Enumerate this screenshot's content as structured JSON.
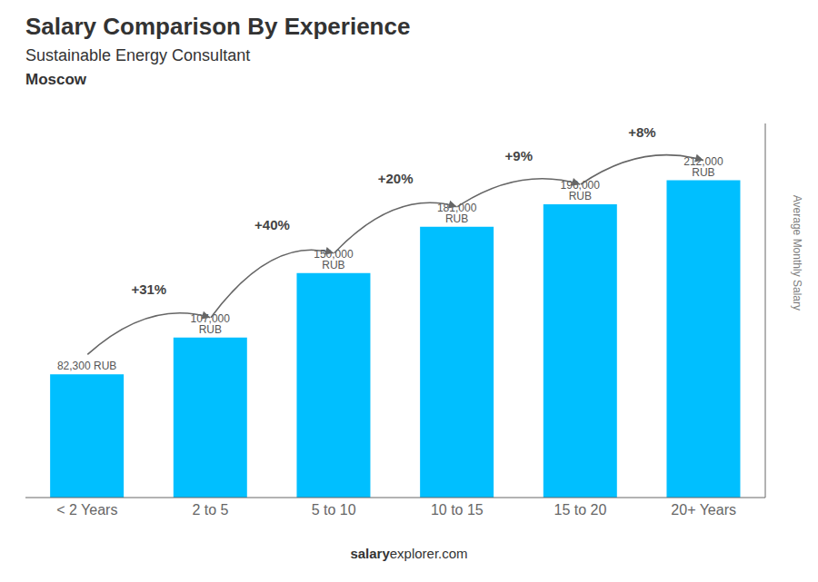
{
  "chart_data": {
    "type": "bar",
    "title": "Salary Comparison By Experience",
    "subtitle": "Sustainable Energy Consultant",
    "city": "Moscow",
    "ylabel": "Average Monthly Salary",
    "categories": [
      "< 2 Years",
      "2 to 5",
      "5 to 10",
      "10 to 15",
      "15 to 20",
      "20+ Years"
    ],
    "values": [
      82300,
      107000,
      150000,
      181000,
      196000,
      212000
    ],
    "value_labels": [
      "82,300 RUB",
      "107,000 RUB",
      "150,000 RUB",
      "181,000 RUB",
      "196,000 RUB",
      "212,000 RUB"
    ],
    "data_labels": true,
    "annotations": [
      "+31%",
      "+40%",
      "+20%",
      "+9%",
      "+8%"
    ],
    "footer": [
      "salary",
      "explorer.com"
    ],
    "color": "#00bfff",
    "ylim": [
      0,
      250000
    ],
    "grid": false,
    "tick_labels": "x"
  }
}
